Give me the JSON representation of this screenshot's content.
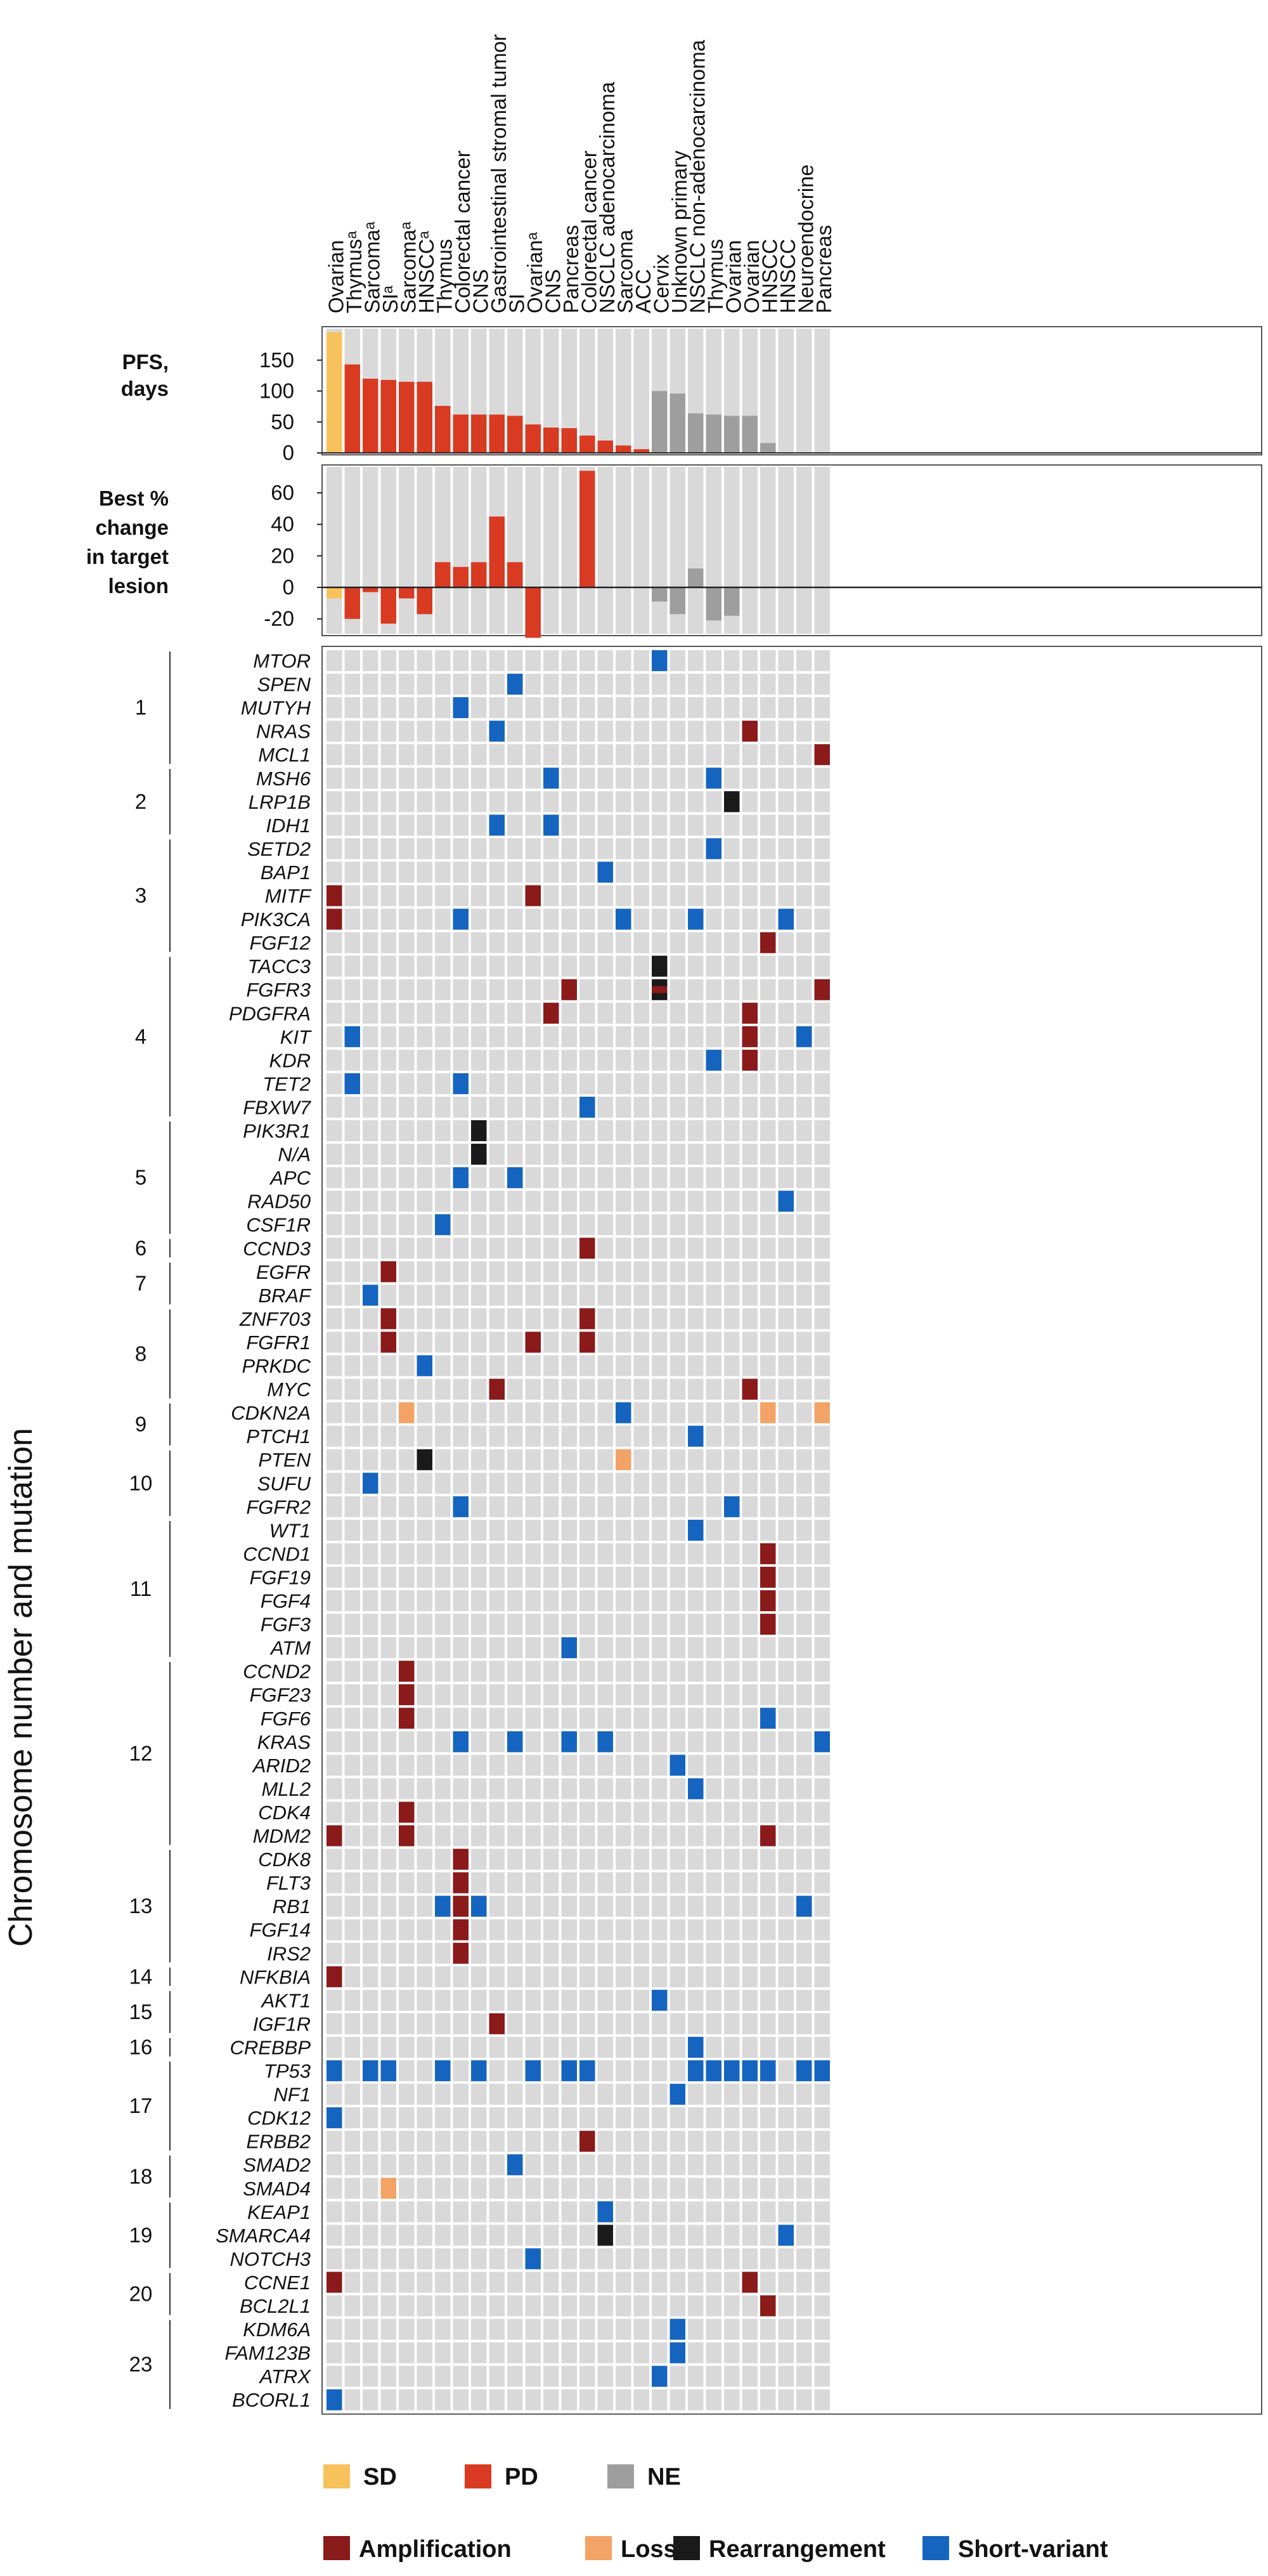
{
  "chart_data": {
    "type": "heatmap",
    "patients": [
      {
        "tumor": "Ovarian",
        "response": "SD",
        "pfs": 195,
        "best_change": -7
      },
      {
        "tumor": "Thymusᵃ",
        "response": "PD",
        "pfs": 143,
        "best_change": -20
      },
      {
        "tumor": "Sarcomaᵃ",
        "response": "PD",
        "pfs": 120,
        "best_change": -3
      },
      {
        "tumor": "SIᵃ",
        "response": "PD",
        "pfs": 118,
        "best_change": -23
      },
      {
        "tumor": "Sarcomaᵃ",
        "response": "PD",
        "pfs": 115,
        "best_change": -7
      },
      {
        "tumor": "HNSCCᵃ",
        "response": "PD",
        "pfs": 115,
        "best_change": -17
      },
      {
        "tumor": "Thymus",
        "response": "PD",
        "pfs": 76,
        "best_change": 16
      },
      {
        "tumor": "Colorectal cancer",
        "response": "PD",
        "pfs": 62,
        "best_change": 13
      },
      {
        "tumor": "CNS",
        "response": "PD",
        "pfs": 62,
        "best_change": 16
      },
      {
        "tumor": "Gastrointestinal stromal tumor",
        "response": "PD",
        "pfs": 62,
        "best_change": 45
      },
      {
        "tumor": "SI",
        "response": "PD",
        "pfs": 60,
        "best_change": 16
      },
      {
        "tumor": "Ovarianᵃ",
        "response": "PD",
        "pfs": 46,
        "best_change": -32
      },
      {
        "tumor": "CNS",
        "response": "PD",
        "pfs": 41,
        "best_change": null
      },
      {
        "tumor": "Pancreas",
        "response": "PD",
        "pfs": 40,
        "best_change": null
      },
      {
        "tumor": "Colorectal cancer",
        "response": "PD",
        "pfs": 28,
        "best_change": 74
      },
      {
        "tumor": "NSCLC adenocarcinoma",
        "response": "PD",
        "pfs": 20,
        "best_change": null
      },
      {
        "tumor": "Sarcoma",
        "response": "PD",
        "pfs": 12,
        "best_change": null
      },
      {
        "tumor": "ACC",
        "response": "PD",
        "pfs": 6,
        "best_change": null
      },
      {
        "tumor": "Cervix",
        "response": "NE",
        "pfs": 100,
        "best_change": -9
      },
      {
        "tumor": "Unknown primary",
        "response": "NE",
        "pfs": 96,
        "best_change": -17
      },
      {
        "tumor": "NSCLC non-adenocarcinoma",
        "response": "NE",
        "pfs": 64,
        "best_change": 12
      },
      {
        "tumor": "Thymus",
        "response": "NE",
        "pfs": 62,
        "best_change": -21
      },
      {
        "tumor": "Ovarian",
        "response": "NE",
        "pfs": 60,
        "best_change": -18
      },
      {
        "tumor": "Ovarian",
        "response": "NE",
        "pfs": 60,
        "best_change": null
      },
      {
        "tumor": "HNSCC",
        "response": "NE",
        "pfs": 16,
        "best_change": null
      },
      {
        "tumor": "HNSCC",
        "response": "NE",
        "pfs": null,
        "best_change": null
      },
      {
        "tumor": "Neuroendocrine",
        "response": "NE",
        "pfs": null,
        "best_change": null
      },
      {
        "tumor": "Pancreas",
        "response": "NE",
        "pfs": null,
        "best_change": null
      }
    ],
    "pfs_axis": {
      "label_lines": [
        "PFS,",
        "days"
      ],
      "ticks": [
        0,
        50,
        100,
        150
      ],
      "ylim": [
        0,
        200
      ]
    },
    "change_axis": {
      "label_lines": [
        "Best %",
        "change",
        "in target",
        "lesion"
      ],
      "ticks": [
        -20,
        0,
        20,
        40,
        60
      ],
      "ylim": [
        -38,
        78
      ]
    },
    "y_axis_title": "Chromosome number and mutation",
    "chromosomes": [
      {
        "label": "1",
        "genes": [
          "MTOR",
          "SPEN",
          "MUTYH",
          "NRAS",
          "MCL1"
        ]
      },
      {
        "label": "2",
        "genes": [
          "MSH6",
          "LRP1B",
          "IDH1"
        ]
      },
      {
        "label": "3",
        "genes": [
          "SETD2",
          "BAP1",
          "MITF",
          "PIK3CA",
          "FGF12"
        ]
      },
      {
        "label": "4",
        "genes": [
          "TACC3",
          "FGFR3",
          "PDGFRA",
          "KIT",
          "KDR",
          "TET2",
          "FBXW7"
        ]
      },
      {
        "label": "5",
        "genes": [
          "PIK3R1",
          "N/A",
          "APC",
          "RAD50",
          "CSF1R"
        ]
      },
      {
        "label": "6",
        "genes": [
          "CCND3"
        ]
      },
      {
        "label": "7",
        "genes": [
          "EGFR",
          "BRAF"
        ]
      },
      {
        "label": "8",
        "genes": [
          "ZNF703",
          "FGFR1",
          "PRKDC",
          "MYC"
        ]
      },
      {
        "label": "9",
        "genes": [
          "CDKN2A",
          "PTCH1"
        ]
      },
      {
        "label": "10",
        "genes": [
          "PTEN",
          "SUFU",
          "FGFR2"
        ]
      },
      {
        "label": "11",
        "genes": [
          "WT1",
          "CCND1",
          "FGF19",
          "FGF4",
          "FGF3",
          "ATM"
        ]
      },
      {
        "label": "12",
        "genes": [
          "CCND2",
          "FGF23",
          "FGF6",
          "KRAS",
          "ARID2",
          "MLL2",
          "CDK4",
          "MDM2"
        ]
      },
      {
        "label": "13",
        "genes": [
          "CDK8",
          "FLT3",
          "RB1",
          "FGF14",
          "IRS2"
        ]
      },
      {
        "label": "14",
        "genes": [
          "NFKBIA"
        ]
      },
      {
        "label": "15",
        "genes": [
          "AKT1",
          "IGF1R"
        ]
      },
      {
        "label": "16",
        "genes": [
          "CREBBP"
        ]
      },
      {
        "label": "17",
        "genes": [
          "TP53",
          "NF1",
          "CDK12",
          "ERBB2"
        ]
      },
      {
        "label": "18",
        "genes": [
          "SMAD2",
          "SMAD4"
        ]
      },
      {
        "label": "19",
        "genes": [
          "KEAP1",
          "SMARCA4",
          "NOTCH3"
        ]
      },
      {
        "label": "20",
        "genes": [
          "CCNE1",
          "BCL2L1"
        ]
      },
      {
        "label": "23",
        "genes": [
          "KDM6A",
          "FAM123B",
          "ATRX",
          "BCORL1"
        ]
      }
    ],
    "alterations": [
      {
        "gene": "MTOR",
        "patient": 19,
        "type": "short"
      },
      {
        "gene": "SPEN",
        "patient": 11,
        "type": "short"
      },
      {
        "gene": "MUTYH",
        "patient": 8,
        "type": "short"
      },
      {
        "gene": "NRAS",
        "patient": 10,
        "type": "short"
      },
      {
        "gene": "NRAS",
        "patient": 24,
        "type": "amp"
      },
      {
        "gene": "MCL1",
        "patient": 28,
        "type": "amp"
      },
      {
        "gene": "MSH6",
        "patient": 13,
        "type": "short"
      },
      {
        "gene": "MSH6",
        "patient": 22,
        "type": "short"
      },
      {
        "gene": "LRP1B",
        "patient": 23,
        "type": "rearr"
      },
      {
        "gene": "IDH1",
        "patient": 10,
        "type": "short"
      },
      {
        "gene": "IDH1",
        "patient": 13,
        "type": "short"
      },
      {
        "gene": "SETD2",
        "patient": 22,
        "type": "short"
      },
      {
        "gene": "BAP1",
        "patient": 16,
        "type": "short"
      },
      {
        "gene": "MITF",
        "patient": 1,
        "type": "amp"
      },
      {
        "gene": "MITF",
        "patient": 12,
        "type": "amp"
      },
      {
        "gene": "PIK3CA",
        "patient": 1,
        "type": "amp"
      },
      {
        "gene": "PIK3CA",
        "patient": 8,
        "type": "short"
      },
      {
        "gene": "PIK3CA",
        "patient": 17,
        "type": "short"
      },
      {
        "gene": "PIK3CA",
        "patient": 21,
        "type": "short"
      },
      {
        "gene": "PIK3CA",
        "patient": 26,
        "type": "short"
      },
      {
        "gene": "FGF12",
        "patient": 25,
        "type": "amp"
      },
      {
        "gene": "TACC3",
        "patient": 19,
        "type": "rearr"
      },
      {
        "gene": "FGFR3",
        "patient": 14,
        "type": "amp"
      },
      {
        "gene": "FGFR3",
        "patient": 19,
        "type": "rearr_amp"
      },
      {
        "gene": "FGFR3",
        "patient": 28,
        "type": "amp"
      },
      {
        "gene": "PDGFRA",
        "patient": 13,
        "type": "amp"
      },
      {
        "gene": "PDGFRA",
        "patient": 24,
        "type": "amp"
      },
      {
        "gene": "KIT",
        "patient": 2,
        "type": "short"
      },
      {
        "gene": "KIT",
        "patient": 24,
        "type": "amp"
      },
      {
        "gene": "KIT",
        "patient": 27,
        "type": "short"
      },
      {
        "gene": "KDR",
        "patient": 22,
        "type": "short"
      },
      {
        "gene": "KDR",
        "patient": 24,
        "type": "amp"
      },
      {
        "gene": "TET2",
        "patient": 2,
        "type": "short"
      },
      {
        "gene": "TET2",
        "patient": 8,
        "type": "short"
      },
      {
        "gene": "FBXW7",
        "patient": 15,
        "type": "short"
      },
      {
        "gene": "PIK3R1",
        "patient": 9,
        "type": "rearr"
      },
      {
        "gene": "N/A",
        "patient": 9,
        "type": "rearr"
      },
      {
        "gene": "APC",
        "patient": 8,
        "type": "short"
      },
      {
        "gene": "APC",
        "patient": 11,
        "type": "short"
      },
      {
        "gene": "RAD50",
        "patient": 26,
        "type": "short"
      },
      {
        "gene": "CSF1R",
        "patient": 7,
        "type": "short"
      },
      {
        "gene": "CCND3",
        "patient": 15,
        "type": "amp"
      },
      {
        "gene": "EGFR",
        "patient": 4,
        "type": "amp"
      },
      {
        "gene": "BRAF",
        "patient": 3,
        "type": "short"
      },
      {
        "gene": "ZNF703",
        "patient": 4,
        "type": "amp"
      },
      {
        "gene": "ZNF703",
        "patient": 15,
        "type": "amp"
      },
      {
        "gene": "FGFR1",
        "patient": 4,
        "type": "amp"
      },
      {
        "gene": "FGFR1",
        "patient": 12,
        "type": "amp"
      },
      {
        "gene": "FGFR1",
        "patient": 15,
        "type": "amp"
      },
      {
        "gene": "PRKDC",
        "patient": 6,
        "type": "short"
      },
      {
        "gene": "MYC",
        "patient": 10,
        "type": "amp"
      },
      {
        "gene": "MYC",
        "patient": 24,
        "type": "amp"
      },
      {
        "gene": "CDKN2A",
        "patient": 5,
        "type": "loss"
      },
      {
        "gene": "CDKN2A",
        "patient": 17,
        "type": "short"
      },
      {
        "gene": "CDKN2A",
        "patient": 25,
        "type": "loss"
      },
      {
        "gene": "CDKN2A",
        "patient": 28,
        "type": "loss"
      },
      {
        "gene": "PTCH1",
        "patient": 21,
        "type": "short"
      },
      {
        "gene": "PTEN",
        "patient": 6,
        "type": "rearr"
      },
      {
        "gene": "PTEN",
        "patient": 17,
        "type": "loss"
      },
      {
        "gene": "SUFU",
        "patient": 3,
        "type": "short"
      },
      {
        "gene": "FGFR2",
        "patient": 8,
        "type": "short"
      },
      {
        "gene": "FGFR2",
        "patient": 23,
        "type": "short"
      },
      {
        "gene": "WT1",
        "patient": 21,
        "type": "short"
      },
      {
        "gene": "CCND1",
        "patient": 25,
        "type": "amp"
      },
      {
        "gene": "FGF19",
        "patient": 25,
        "type": "amp"
      },
      {
        "gene": "FGF4",
        "patient": 25,
        "type": "amp"
      },
      {
        "gene": "FGF3",
        "patient": 25,
        "type": "amp"
      },
      {
        "gene": "ATM",
        "patient": 14,
        "type": "short"
      },
      {
        "gene": "CCND2",
        "patient": 5,
        "type": "amp"
      },
      {
        "gene": "FGF23",
        "patient": 5,
        "type": "amp"
      },
      {
        "gene": "FGF6",
        "patient": 5,
        "type": "amp"
      },
      {
        "gene": "FGF6",
        "patient": 25,
        "type": "short"
      },
      {
        "gene": "KRAS",
        "patient": 8,
        "type": "short"
      },
      {
        "gene": "KRAS",
        "patient": 11,
        "type": "short"
      },
      {
        "gene": "KRAS",
        "patient": 14,
        "type": "short"
      },
      {
        "gene": "KRAS",
        "patient": 16,
        "type": "short"
      },
      {
        "gene": "KRAS",
        "patient": 28,
        "type": "short"
      },
      {
        "gene": "ARID2",
        "patient": 20,
        "type": "short"
      },
      {
        "gene": "MLL2",
        "patient": 21,
        "type": "short"
      },
      {
        "gene": "CDK4",
        "patient": 5,
        "type": "amp"
      },
      {
        "gene": "MDM2",
        "patient": 1,
        "type": "amp"
      },
      {
        "gene": "MDM2",
        "patient": 5,
        "type": "amp"
      },
      {
        "gene": "MDM2",
        "patient": 25,
        "type": "amp"
      },
      {
        "gene": "CDK8",
        "patient": 8,
        "type": "amp"
      },
      {
        "gene": "FLT3",
        "patient": 8,
        "type": "amp"
      },
      {
        "gene": "RB1",
        "patient": 7,
        "type": "short"
      },
      {
        "gene": "RB1",
        "patient": 8,
        "type": "amp"
      },
      {
        "gene": "RB1",
        "patient": 9,
        "type": "short"
      },
      {
        "gene": "RB1",
        "patient": 27,
        "type": "short"
      },
      {
        "gene": "FGF14",
        "patient": 8,
        "type": "amp"
      },
      {
        "gene": "IRS2",
        "patient": 8,
        "type": "amp"
      },
      {
        "gene": "NFKBIA",
        "patient": 1,
        "type": "amp"
      },
      {
        "gene": "AKT1",
        "patient": 19,
        "type": "short"
      },
      {
        "gene": "IGF1R",
        "patient": 10,
        "type": "amp"
      },
      {
        "gene": "CREBBP",
        "patient": 21,
        "type": "short"
      },
      {
        "gene": "TP53",
        "patient": 1,
        "type": "short"
      },
      {
        "gene": "TP53",
        "patient": 3,
        "type": "short"
      },
      {
        "gene": "TP53",
        "patient": 4,
        "type": "short"
      },
      {
        "gene": "TP53",
        "patient": 7,
        "type": "short"
      },
      {
        "gene": "TP53",
        "patient": 9,
        "type": "short"
      },
      {
        "gene": "TP53",
        "patient": 12,
        "type": "short"
      },
      {
        "gene": "TP53",
        "patient": 14,
        "type": "short"
      },
      {
        "gene": "TP53",
        "patient": 15,
        "type": "short"
      },
      {
        "gene": "TP53",
        "patient": 21,
        "type": "short"
      },
      {
        "gene": "TP53",
        "patient": 22,
        "type": "short"
      },
      {
        "gene": "TP53",
        "patient": 23,
        "type": "short"
      },
      {
        "gene": "TP53",
        "patient": 24,
        "type": "short"
      },
      {
        "gene": "TP53",
        "patient": 25,
        "type": "short"
      },
      {
        "gene": "TP53",
        "patient": 27,
        "type": "short"
      },
      {
        "gene": "TP53",
        "patient": 28,
        "type": "short"
      },
      {
        "gene": "NF1",
        "patient": 20,
        "type": "short"
      },
      {
        "gene": "CDK12",
        "patient": 1,
        "type": "short"
      },
      {
        "gene": "ERBB2",
        "patient": 15,
        "type": "amp"
      },
      {
        "gene": "SMAD2",
        "patient": 11,
        "type": "short"
      },
      {
        "gene": "SMAD4",
        "patient": 4,
        "type": "loss"
      },
      {
        "gene": "KEAP1",
        "patient": 16,
        "type": "short"
      },
      {
        "gene": "SMARCA4",
        "patient": 16,
        "type": "rearr"
      },
      {
        "gene": "SMARCA4",
        "patient": 26,
        "type": "short"
      },
      {
        "gene": "NOTCH3",
        "patient": 12,
        "type": "short"
      },
      {
        "gene": "CCNE1",
        "patient": 1,
        "type": "amp"
      },
      {
        "gene": "CCNE1",
        "patient": 24,
        "type": "amp"
      },
      {
        "gene": "BCL2L1",
        "patient": 25,
        "type": "amp"
      },
      {
        "gene": "KDM6A",
        "patient": 20,
        "type": "short"
      },
      {
        "gene": "FAM123B",
        "patient": 20,
        "type": "short"
      },
      {
        "gene": "ATRX",
        "patient": 19,
        "type": "short"
      },
      {
        "gene": "BCORL1",
        "patient": 1,
        "type": "short"
      }
    ],
    "response_legend": [
      {
        "key": "SD",
        "label": "SD",
        "color": "#F7C25B"
      },
      {
        "key": "PD",
        "label": "PD",
        "color": "#D93A22"
      },
      {
        "key": "NE",
        "label": "NE",
        "color": "#9E9E9E"
      }
    ],
    "alteration_legend": [
      {
        "key": "amp",
        "label": "Amplification",
        "color": "#8B1A1A"
      },
      {
        "key": "loss",
        "label": "Loss",
        "color": "#F3A365"
      },
      {
        "key": "rearr",
        "label": "Rearrangement",
        "color": "#1A1A1A"
      },
      {
        "key": "short",
        "label": "Short-variant",
        "color": "#1565C0"
      }
    ],
    "colors": {
      "cell": "#D9D9D9",
      "grid": "#FFFFFF",
      "frame": "#444444"
    }
  }
}
